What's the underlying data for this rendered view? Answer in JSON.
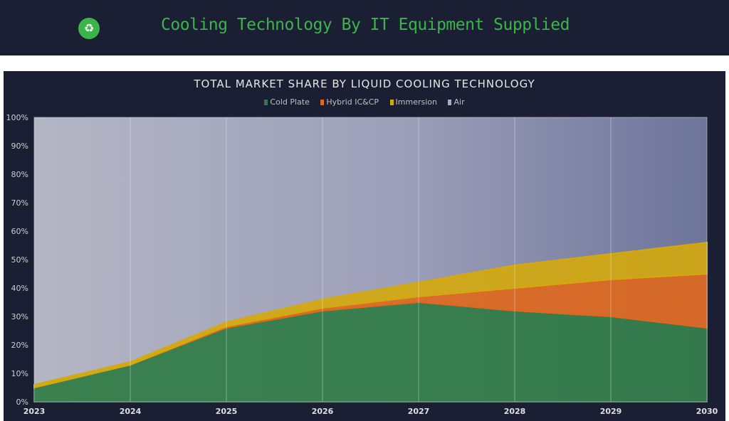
{
  "header": {
    "title": "Cooling Technology By IT Equipment Supplied",
    "logo_icon": "recycle-hands-icon"
  },
  "chart_data": {
    "type": "area",
    "stacked": true,
    "title": "TOTAL MARKET SHARE BY LIQUID COOLING TECHNOLOGY",
    "xlabel": "",
    "ylabel": "",
    "x": [
      "2023",
      "2024",
      "2025",
      "2026",
      "2027",
      "2028",
      "2029",
      "2030"
    ],
    "ylim": [
      0,
      100
    ],
    "yticks": [
      "0%",
      "10%",
      "20%",
      "30%",
      "40%",
      "50%",
      "60%",
      "70%",
      "80%",
      "90%",
      "100%"
    ],
    "legend_position": "top",
    "grid": true,
    "series": [
      {
        "name": "Cold Plate",
        "color": "#2e7a42",
        "values": [
          5,
          13,
          26,
          32,
          35,
          32,
          30,
          26
        ]
      },
      {
        "name": "Hybrid IC&CP",
        "color": "#e0671c",
        "values": [
          0,
          0,
          0.5,
          1,
          2,
          8,
          13,
          19
        ]
      },
      {
        "name": "Immersion",
        "color": "#d4a90c",
        "values": [
          1,
          1,
          1.5,
          3,
          5,
          8,
          9,
          11
        ]
      },
      {
        "name": "Air",
        "color": "#a9adc0",
        "values": [
          94,
          86,
          72,
          64,
          58,
          52,
          48,
          44
        ]
      }
    ]
  }
}
